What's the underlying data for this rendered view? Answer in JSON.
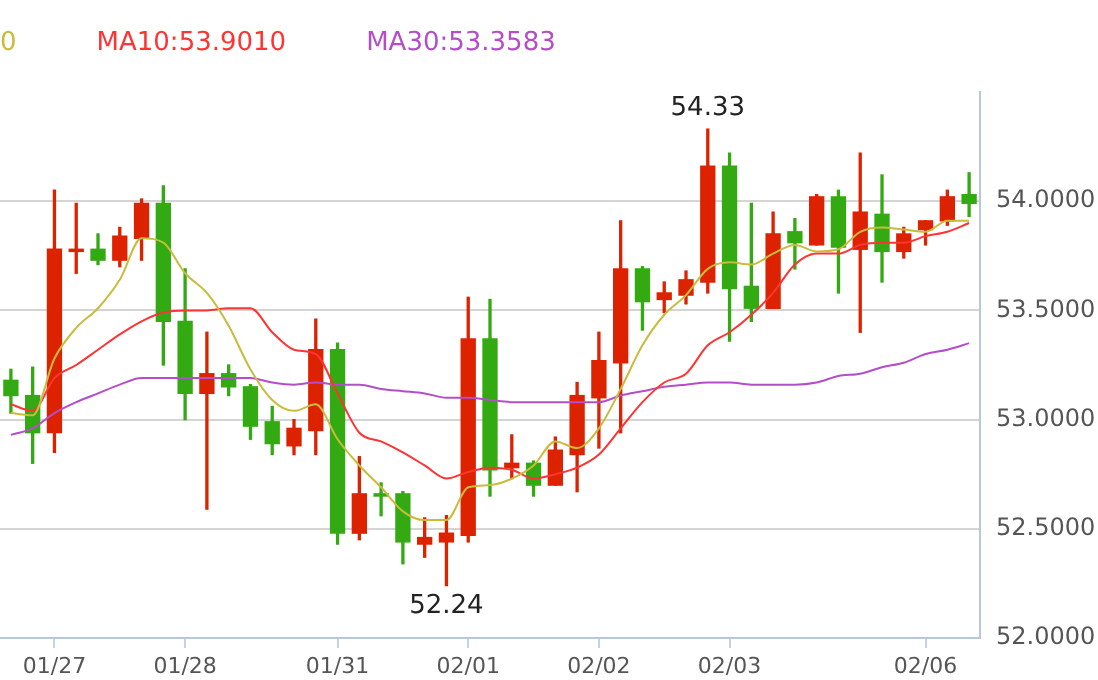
{
  "chart_data": {
    "type": "candlestick",
    "categories": [
      null,
      null,
      "01/27",
      null,
      null,
      null,
      null,
      null,
      "01/28",
      null,
      null,
      null,
      null,
      null,
      null,
      "01/31",
      null,
      null,
      null,
      null,
      null,
      "02/01",
      null,
      null,
      null,
      null,
      null,
      "02/02",
      null,
      null,
      null,
      null,
      null,
      "02/03",
      null,
      null,
      null,
      null,
      null,
      null,
      null,
      null,
      "02/06",
      null,
      null
    ],
    "ohlc": [
      [
        53.18,
        53.23,
        53.03,
        53.11
      ],
      [
        53.11,
        53.24,
        52.8,
        52.94
      ],
      [
        52.94,
        54.05,
        52.85,
        53.78
      ],
      [
        53.77,
        53.99,
        53.67,
        53.78
      ],
      [
        53.78,
        53.85,
        53.71,
        53.73
      ],
      [
        53.73,
        53.88,
        53.7,
        53.84
      ],
      [
        53.83,
        54.01,
        53.73,
        53.99
      ],
      [
        53.99,
        54.07,
        53.25,
        53.45
      ],
      [
        53.45,
        53.69,
        53.0,
        53.12
      ],
      [
        53.12,
        53.4,
        52.59,
        53.21
      ],
      [
        53.21,
        53.25,
        53.11,
        53.15
      ],
      [
        53.15,
        53.16,
        52.91,
        52.97
      ],
      [
        52.99,
        53.06,
        52.84,
        52.89
      ],
      [
        52.88,
        53.0,
        52.84,
        52.96
      ],
      [
        52.95,
        53.46,
        52.84,
        53.32
      ],
      [
        53.32,
        53.35,
        52.43,
        52.48
      ],
      [
        52.48,
        52.83,
        52.45,
        52.66
      ],
      [
        52.66,
        52.71,
        52.56,
        52.65
      ],
      [
        52.66,
        52.67,
        52.34,
        52.44
      ],
      [
        52.43,
        52.55,
        52.37,
        52.46
      ],
      [
        52.44,
        52.56,
        52.24,
        52.48
      ],
      [
        52.47,
        53.56,
        52.44,
        53.37
      ],
      [
        53.37,
        53.55,
        52.65,
        52.77
      ],
      [
        52.78,
        52.93,
        52.73,
        52.8
      ],
      [
        52.8,
        52.81,
        52.65,
        52.7
      ],
      [
        52.7,
        52.92,
        52.7,
        52.86
      ],
      [
        52.84,
        53.17,
        52.67,
        53.11
      ],
      [
        53.1,
        53.4,
        52.87,
        53.27
      ],
      [
        53.26,
        53.91,
        52.94,
        53.69
      ],
      [
        53.69,
        53.7,
        53.41,
        53.54
      ],
      [
        53.55,
        53.63,
        53.49,
        53.58
      ],
      [
        53.57,
        53.68,
        53.53,
        53.64
      ],
      [
        53.63,
        54.33,
        53.58,
        54.16
      ],
      [
        54.16,
        54.22,
        53.36,
        53.6
      ],
      [
        53.61,
        53.99,
        53.45,
        53.51
      ],
      [
        53.51,
        53.95,
        53.51,
        53.85
      ],
      [
        53.86,
        53.92,
        53.69,
        53.81
      ],
      [
        53.8,
        54.03,
        53.8,
        54.02
      ],
      [
        54.02,
        54.05,
        53.58,
        53.79
      ],
      [
        53.78,
        54.22,
        53.4,
        53.95
      ],
      [
        53.94,
        54.12,
        53.63,
        53.77
      ],
      [
        53.77,
        53.88,
        53.74,
        53.85
      ],
      [
        53.87,
        53.91,
        53.8,
        53.91
      ],
      [
        53.91,
        54.05,
        53.89,
        54.02
      ],
      [
        54.03,
        54.13,
        53.93,
        53.99
      ]
    ],
    "colors": [
      "#33aa11",
      "#33aa11",
      "#dd2200",
      "#dd2200",
      "#33aa11",
      "#dd2200",
      "#dd2200",
      "#33aa11",
      "#33aa11",
      "#dd2200",
      "#33aa11",
      "#33aa11",
      "#33aa11",
      "#dd2200",
      "#dd2200",
      "#33aa11",
      "#dd2200",
      "#33aa11",
      "#33aa11",
      "#dd2200",
      "#dd2200",
      "#dd2200",
      "#33aa11",
      "#dd2200",
      "#33aa11",
      "#dd2200",
      "#dd2200",
      "#dd2200",
      "#dd2200",
      "#33aa11",
      "#dd2200",
      "#dd2200",
      "#dd2200",
      "#33aa11",
      "#33aa11",
      "#dd2200",
      "#33aa11",
      "#dd2200",
      "#33aa11",
      "#dd2200",
      "#33aa11",
      "#dd2200",
      "#dd2200",
      "#dd2200",
      "#33aa11"
    ],
    "series": [
      {
        "type": "line",
        "name": "0",
        "color": "#c8bc3c",
        "values": [
          53.03,
          53.02,
          53.28,
          53.42,
          53.51,
          53.64,
          53.83,
          53.81,
          53.67,
          53.58,
          53.43,
          53.23,
          53.09,
          53.04,
          53.07,
          52.91,
          52.79,
          52.69,
          52.58,
          52.54,
          52.54,
          52.69,
          52.7,
          52.73,
          52.79,
          52.9,
          52.87,
          52.96,
          53.14,
          53.34,
          53.48,
          53.57,
          53.69,
          53.72,
          53.71,
          53.76,
          53.8,
          53.77,
          53.78,
          53.86,
          53.88,
          53.87,
          53.86,
          53.91,
          53.91
        ]
      },
      {
        "type": "line",
        "name": "MA10:53.9010",
        "color": "#ff3333",
        "values": [
          53.07,
          53.04,
          53.19,
          53.25,
          53.32,
          53.39,
          53.45,
          53.49,
          53.5,
          53.5,
          53.51,
          53.51,
          53.4,
          53.32,
          53.3,
          53.12,
          52.94,
          52.9,
          52.85,
          52.79,
          52.73,
          52.76,
          52.78,
          52.77,
          52.73,
          52.75,
          52.78,
          52.84,
          52.96,
          53.08,
          53.17,
          53.21,
          53.34,
          53.4,
          53.48,
          53.58,
          53.71,
          53.76,
          53.76,
          53.8,
          53.81,
          53.81,
          53.84,
          53.86,
          53.9
        ]
      },
      {
        "type": "line",
        "name": "MA30:53.3583",
        "color": "#b44ec8",
        "values": [
          52.93,
          52.96,
          53.03,
          53.08,
          53.12,
          53.16,
          53.19,
          53.19,
          53.19,
          53.19,
          53.19,
          53.19,
          53.17,
          53.16,
          53.17,
          53.16,
          53.16,
          53.14,
          53.13,
          53.12,
          53.1,
          53.1,
          53.09,
          53.08,
          53.08,
          53.08,
          53.08,
          53.08,
          53.11,
          53.13,
          53.15,
          53.16,
          53.17,
          53.17,
          53.16,
          53.16,
          53.16,
          53.17,
          53.2,
          53.21,
          53.24,
          53.26,
          53.3,
          53.32,
          53.35
        ]
      }
    ],
    "ylim": [
      52,
      54.5
    ],
    "yticks": [
      {
        "value": 52,
        "label": "52.0000"
      },
      {
        "value": 52.5,
        "label": "52.5000"
      },
      {
        "value": 53,
        "label": "53.0000"
      },
      {
        "value": 53.5,
        "label": "53.5000"
      },
      {
        "value": 54,
        "label": "54.0000"
      }
    ],
    "grid": "y",
    "legend": "top",
    "annotations": [
      {
        "text": "54.33",
        "y": 54.33
      },
      {
        "text": "52.24",
        "y": 52.24
      }
    ]
  }
}
